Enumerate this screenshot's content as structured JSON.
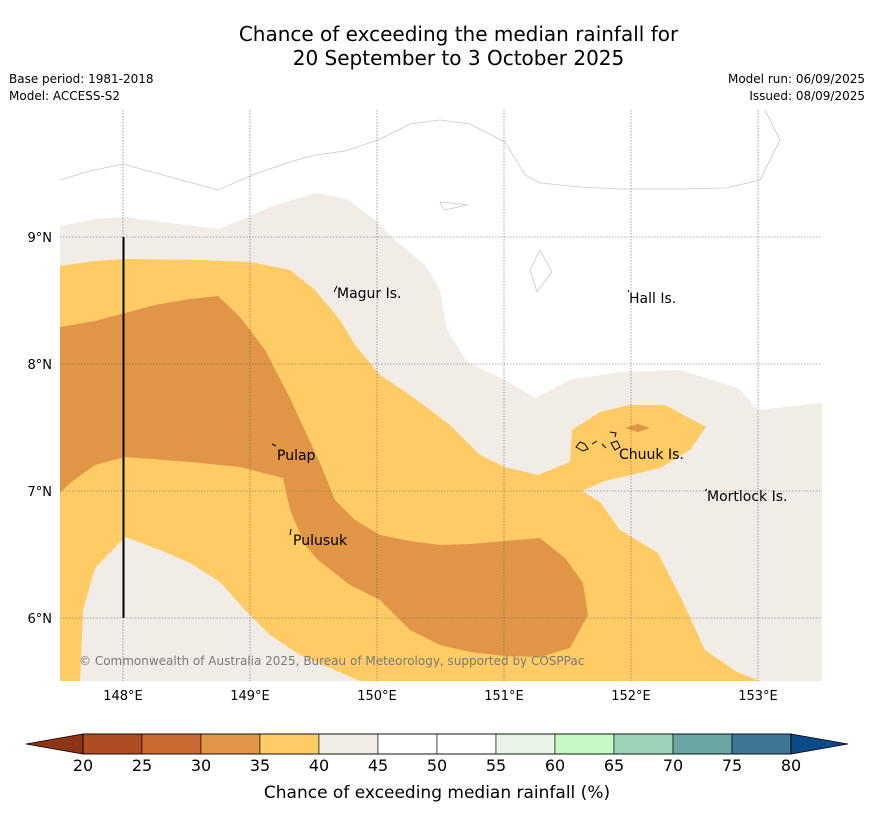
{
  "header": {
    "title_line1": "Chance of exceeding the median rainfall for",
    "title_line2": "20 September to 3 October 2025",
    "base_period": "Base period: 1981-2018",
    "model": "Model: ACCESS-S2",
    "model_run": "Model run: 06/09/2025",
    "issued": "Issued: 08/09/2025"
  },
  "map": {
    "lon_ticks": [
      "148°E",
      "149°E",
      "150°E",
      "151°E",
      "152°E",
      "153°E"
    ],
    "lat_ticks": [
      "9°N",
      "8°N",
      "7°N",
      "6°N"
    ],
    "places": {
      "magur": "Magur Is.",
      "hall": "Hall Is.",
      "pulap": "Pulap",
      "chuuk": "Chuuk Is.",
      "mortlock": "Mortlock Is.",
      "pulusuk": "Pulusuk"
    },
    "copyright": "© Commonwealth of Australia 2025, Bureau of Meteorology, supported by COSPPac",
    "colors": {
      "c30_35": "#e09646",
      "c35_40": "#fecb65",
      "c40_45": "#f1ece6",
      "border": "#000000"
    }
  },
  "colorbar": {
    "title": "Chance of exceeding median rainfall (%)",
    "labels": [
      "20",
      "25",
      "30",
      "35",
      "40",
      "45",
      "50",
      "55",
      "60",
      "65",
      "70",
      "75",
      "80"
    ],
    "under_color": "#8e3317",
    "over_color": "#0d4a8a",
    "colors": [
      "#b14b23",
      "#cc6933",
      "#e09646",
      "#fecb65",
      "#f1ece6",
      "#ffffff",
      "#ffffff",
      "#e7f4e7",
      "#c7f9c8",
      "#9dd3b8",
      "#6aa6a4",
      "#3f7698"
    ]
  }
}
